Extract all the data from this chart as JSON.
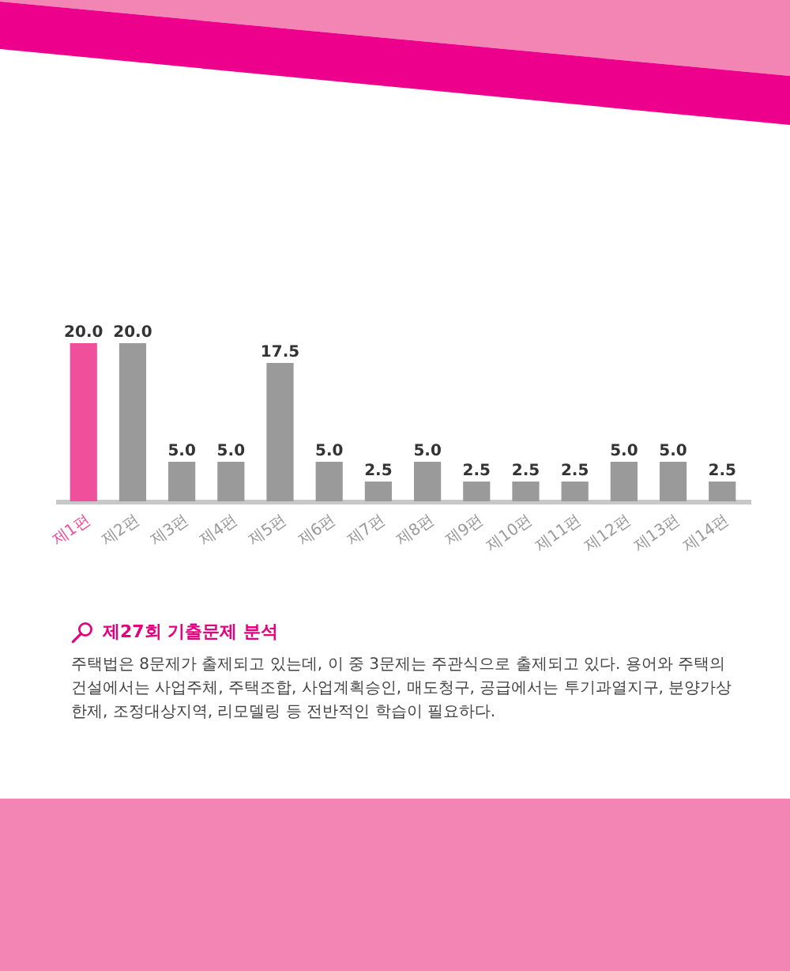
{
  "chart_data": {
    "type": "bar",
    "title": "제27회 기출문제 분석",
    "annotations": [
      "주택법은 8문제가 출제되고 있는데, 이 중 3문제는 주관식으로 출제되고 있다. 용어와 주택의 건설에서는 사업주체, 주택조합, 사업계획승인, 매도청구, 공급에서는 투기과열지구, 분양가상한제, 조정대상지역, 리모델링 등 전반적인 학습이 필요하다."
    ],
    "categories": [
      "제1편",
      "제2편",
      "제3편",
      "제4편",
      "제5편",
      "제6편",
      "제7편",
      "제8편",
      "제9편",
      "제10편",
      "제11편",
      "제12편",
      "제13편",
      "제14편"
    ],
    "values": [
      20,
      20,
      5,
      5,
      17.5,
      5,
      2.5,
      5,
      2.5,
      2.5,
      2.5,
      5,
      5,
      2.5
    ],
    "value_labels": [
      "20.0",
      "20.0",
      "5.0",
      "5.0",
      "17.5",
      "5.0",
      "2.5",
      "5.0",
      "2.5",
      "2.5",
      "2.5",
      "5.0",
      "5.0",
      "2.5"
    ],
    "colors": [
      "#f0509b",
      "#9a9a9a",
      "#9a9a9a",
      "#9a9a9a",
      "#9a9a9a",
      "#9a9a9a",
      "#9a9a9a",
      "#9a9a9a",
      "#9a9a9a",
      "#9a9a9a",
      "#9a9a9a",
      "#9a9a9a",
      "#9a9a9a",
      "#9a9a9a"
    ],
    "tick_labels": "x"
  }
}
